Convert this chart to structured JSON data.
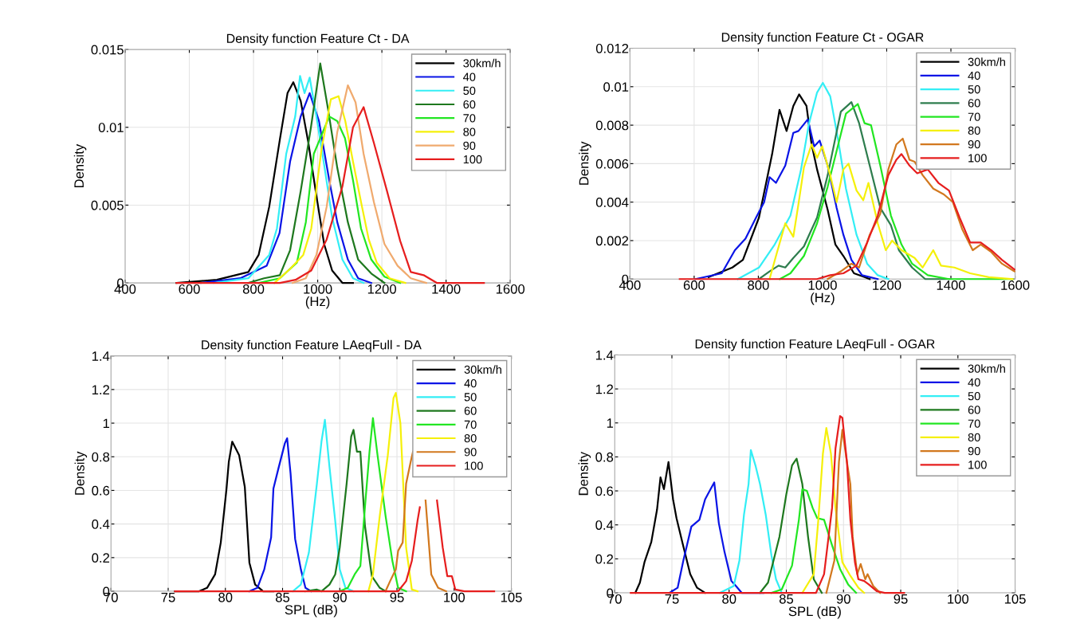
{
  "chart_data": [
    {
      "type": "line",
      "title": "Density function Feature Ct - DA",
      "xlabel": "(Hz)",
      "ylabel": "Density",
      "xlim": [
        400,
        1600
      ],
      "xticks": [
        400,
        600,
        800,
        1000,
        1200,
        1400,
        1600
      ],
      "ylim": [
        0,
        0.015
      ],
      "yticks": [
        0,
        0.005,
        0.01,
        0.015
      ],
      "grid": true,
      "legend": "top right",
      "series": [
        {
          "name": "30km/h",
          "color": "#000000",
          "x": [
            560,
            686,
            784,
            816,
            849,
            882,
            906,
            924,
            947,
            971,
            996,
            1020,
            1045,
            1077,
            1110
          ],
          "values": [
            0,
            0.0002,
            0.0007,
            0.0018,
            0.0049,
            0.0092,
            0.0122,
            0.0129,
            0.0117,
            0.009,
            0.0056,
            0.0025,
            0.0008,
            0,
            0
          ]
        },
        {
          "name": "40",
          "color": "#0a14e6",
          "x": [
            637,
            759,
            841,
            881,
            914,
            947,
            975,
            1004,
            1036,
            1061,
            1094,
            1126,
            1167
          ],
          "values": [
            0,
            0.0003,
            0.0011,
            0.0032,
            0.0078,
            0.0107,
            0.0122,
            0.0104,
            0.0066,
            0.0039,
            0.0015,
            0.0003,
            0
          ]
        },
        {
          "name": "50",
          "color": "#33eef5",
          "x": [
            677,
            784,
            849,
            873,
            902,
            930,
            945,
            959,
            975,
            996,
            1020,
            1045,
            1077,
            1110,
            1143
          ],
          "values": [
            0,
            0.0003,
            0.0018,
            0.0035,
            0.0083,
            0.0107,
            0.0133,
            0.0122,
            0.0132,
            0.0107,
            0.0076,
            0.0042,
            0.0015,
            0.0003,
            0
          ]
        },
        {
          "name": "60",
          "color": "#1e781e",
          "x": [
            784,
            833,
            882,
            914,
            947,
            979,
            1008,
            1032,
            1061,
            1094,
            1126,
            1167,
            1208
          ],
          "values": [
            0,
            0.0003,
            0.0005,
            0.0021,
            0.0059,
            0.01,
            0.0141,
            0.0112,
            0.0074,
            0.0039,
            0.0015,
            0.0006,
            0
          ]
        },
        {
          "name": "70",
          "color": "#22e622",
          "x": [
            816,
            882,
            935,
            963,
            988,
            1012,
            1036,
            1061,
            1085,
            1110,
            1135,
            1167,
            1208,
            1257
          ],
          "values": [
            0,
            0.0003,
            0.0013,
            0.0039,
            0.0083,
            0.0095,
            0.0107,
            0.0104,
            0.0093,
            0.0066,
            0.0035,
            0.0015,
            0.0004,
            0
          ]
        },
        {
          "name": "80",
          "color": "#f5f00a",
          "x": [
            865,
            914,
            955,
            980,
            1012,
            1041,
            1065,
            1086,
            1110,
            1135,
            1159,
            1184,
            1224,
            1273
          ],
          "values": [
            0,
            0.0009,
            0.0018,
            0.0035,
            0.0086,
            0.0118,
            0.012,
            0.0104,
            0.0078,
            0.0052,
            0.0028,
            0.0013,
            0.0003,
            0
          ]
        },
        {
          "name": "90",
          "color": "#f0aa6e",
          "x": [
            922,
            963,
            996,
            1028,
            1061,
            1094,
            1118,
            1143,
            1175,
            1208,
            1249,
            1290,
            1338
          ],
          "values": [
            0,
            0.0003,
            0.0018,
            0.0049,
            0.0097,
            0.0127,
            0.0116,
            0.0083,
            0.0052,
            0.0025,
            0.0011,
            0.0003,
            0
          ]
        },
        {
          "name": "100",
          "color": "#e61e1e",
          "x": [
            560,
            882,
            931,
            980,
            1028,
            1077,
            1110,
            1143,
            1175,
            1216,
            1257,
            1290,
            1330,
            1371,
            1518
          ],
          "values": [
            0,
            0,
            0.0002,
            0.0008,
            0.0028,
            0.0062,
            0.01,
            0.0113,
            0.009,
            0.0059,
            0.0027,
            0.0007,
            0.0005,
            0,
            0
          ]
        }
      ]
    },
    {
      "type": "line",
      "title": "Density function Feature Ct - OGAR",
      "xlabel": "(Hz)",
      "ylabel": "Density",
      "xlim": [
        400,
        1600
      ],
      "xticks": [
        400,
        600,
        800,
        1000,
        1200,
        1400,
        1600
      ],
      "ylim": [
        0,
        0.012
      ],
      "yticks": [
        0,
        0.002,
        0.004,
        0.006,
        0.008,
        0.01,
        0.012
      ],
      "grid": true,
      "legend": "top right",
      "series": [
        {
          "name": "30km/h",
          "color": "#000000",
          "x": [
            645,
            719,
            752,
            802,
            843,
            866,
            888,
            909,
            927,
            950,
            966,
            983,
            1016,
            1040,
            1065,
            1098,
            1131,
            1147
          ],
          "values": [
            0.0001,
            0.0006,
            0.001,
            0.0032,
            0.0065,
            0.0088,
            0.0077,
            0.009,
            0.0096,
            0.009,
            0.007,
            0.0057,
            0.0036,
            0.0018,
            0.0012,
            0.0003,
            0.0001,
            0
          ]
        },
        {
          "name": "40",
          "color": "#0a14e6",
          "x": [
            604,
            686,
            727,
            760,
            793,
            818,
            835,
            855,
            884,
            909,
            925,
            954,
            974,
            991,
            1016,
            1044,
            1065,
            1090,
            1123,
            1172
          ],
          "values": [
            0,
            0.0003,
            0.0015,
            0.0021,
            0.0032,
            0.004,
            0.0053,
            0.005,
            0.0059,
            0.0076,
            0.0077,
            0.0083,
            0.0069,
            0.0072,
            0.0059,
            0.0037,
            0.0023,
            0.001,
            0.0002,
            0
          ]
        },
        {
          "name": "50",
          "color": "#33eef5",
          "x": [
            736,
            802,
            851,
            900,
            933,
            958,
            983,
            1001,
            1024,
            1049,
            1073,
            1106,
            1139,
            1172,
            1205
          ],
          "values": [
            0,
            0.0006,
            0.0018,
            0.0033,
            0.0057,
            0.0081,
            0.0097,
            0.0102,
            0.0095,
            0.0072,
            0.0047,
            0.0023,
            0.0008,
            0.0002,
            0
          ]
        },
        {
          "name": "60",
          "color": "#2e7d4e",
          "x": [
            802,
            835,
            863,
            884,
            909,
            942,
            983,
            1016,
            1057,
            1090,
            1114,
            1147,
            1180,
            1213,
            1238,
            1279,
            1320,
            1394
          ],
          "values": [
            0,
            0.0004,
            0.0007,
            0.0006,
            0.0011,
            0.0017,
            0.0032,
            0.0054,
            0.0087,
            0.0092,
            0.0081,
            0.0059,
            0.0037,
            0.0028,
            0.0015,
            0.0006,
            0,
            0
          ]
        },
        {
          "name": "70",
          "color": "#22e622",
          "x": [
            867,
            900,
            942,
            983,
            1016,
            1049,
            1073,
            1110,
            1131,
            1151,
            1180,
            1213,
            1246,
            1279,
            1328,
            1394,
            1592
          ],
          "values": [
            0,
            0.0003,
            0.0012,
            0.0029,
            0.0048,
            0.007,
            0.0086,
            0.0091,
            0.0081,
            0.008,
            0.0059,
            0.0033,
            0.0018,
            0.0008,
            0.0002,
            0,
            0
          ]
        },
        {
          "name": "80",
          "color": "#f5f00a",
          "x": [
            835,
            855,
            884,
            909,
            925,
            942,
            966,
            983,
            999,
            1024,
            1044,
            1065,
            1081,
            1106,
            1127,
            1143,
            1172,
            1197,
            1217,
            1246,
            1287,
            1312,
            1345,
            1369,
            1411,
            1460,
            1518,
            1592
          ],
          "values": [
            0,
            0.0012,
            0.0029,
            0.0022,
            0.0039,
            0.0058,
            0.007,
            0.0063,
            0.0069,
            0.0054,
            0.004,
            0.0057,
            0.006,
            0.0046,
            0.0041,
            0.005,
            0.0029,
            0.0015,
            0.002,
            0.0015,
            0.0011,
            0.0006,
            0.0015,
            0.0007,
            0.0006,
            0.0003,
            0.0001,
            0
          ]
        },
        {
          "name": "90",
          "color": "#d2781e",
          "x": [
            1016,
            1057,
            1090,
            1114,
            1147,
            1180,
            1205,
            1230,
            1250,
            1271,
            1287,
            1312,
            1345,
            1378,
            1406,
            1435,
            1468,
            1493,
            1526,
            1559,
            1598
          ],
          "values": [
            0,
            0.0004,
            0.0008,
            0.0006,
            0.0023,
            0.0034,
            0.0057,
            0.007,
            0.0073,
            0.0062,
            0.0061,
            0.0054,
            0.0047,
            0.0044,
            0.004,
            0.0026,
            0.0015,
            0.0018,
            0.0014,
            0.0008,
            0.0004
          ]
        },
        {
          "name": "100",
          "color": "#e61e1e",
          "x": [
            555,
            983,
            1024,
            1065,
            1106,
            1139,
            1172,
            1205,
            1230,
            1246,
            1271,
            1295,
            1328,
            1361,
            1394,
            1427,
            1460,
            1493,
            1526,
            1559,
            1598
          ],
          "values": [
            0,
            0,
            0.0002,
            0.0003,
            0.0007,
            0.0019,
            0.0033,
            0.0054,
            0.0062,
            0.0065,
            0.0059,
            0.0055,
            0.0057,
            0.005,
            0.0046,
            0.0032,
            0.0019,
            0.0019,
            0.0015,
            0.001,
            0.0005
          ]
        }
      ]
    },
    {
      "type": "line",
      "title": "Density function Feature LAeqFull - DA",
      "xlabel": "SPL (dB)",
      "ylabel": "Density",
      "xlim": [
        70,
        105
      ],
      "xticks": [
        70,
        75,
        80,
        85,
        90,
        95,
        100,
        105
      ],
      "ylim": [
        0,
        1.4
      ],
      "yticks": [
        0,
        0.2,
        0.4,
        0.6,
        0.8,
        1,
        1.2,
        1.4
      ],
      "grid": true,
      "legend": "top right",
      "series": [
        {
          "name": "30km/h",
          "color": "#000000",
          "x": [
            75.6,
            77.7,
            78.4,
            79.1,
            79.6,
            80.1,
            80.3,
            80.6,
            80.9,
            81.2,
            81.7,
            82.1,
            82.6,
            83.3,
            84.2
          ],
          "values": [
            0,
            0,
            0.02,
            0.1,
            0.29,
            0.61,
            0.77,
            0.89,
            0.85,
            0.81,
            0.62,
            0.17,
            0.04,
            0,
            0
          ]
        },
        {
          "name": "40",
          "color": "#0a14e6",
          "x": [
            82.1,
            82.8,
            83.4,
            84.0,
            84.2,
            84.6,
            85.2,
            85.4,
            85.7,
            86.1,
            86.6,
            87.0,
            87.5
          ],
          "values": [
            0,
            0.02,
            0.13,
            0.32,
            0.61,
            0.72,
            0.88,
            0.91,
            0.7,
            0.31,
            0.13,
            0.02,
            0
          ]
        },
        {
          "name": "50",
          "color": "#33eef5",
          "x": [
            85.9,
            86.6,
            87.3,
            88.0,
            88.4,
            88.7,
            89.1,
            89.6,
            90.0,
            90.5,
            91.2
          ],
          "values": [
            0,
            0.04,
            0.23,
            0.64,
            0.89,
            1.02,
            0.74,
            0.42,
            0.13,
            0.02,
            0
          ]
        },
        {
          "name": "60",
          "color": "#1e781e",
          "x": [
            87.0,
            88.0,
            88.4,
            89.1,
            89.6,
            90.0,
            90.6,
            91.0,
            91.2,
            91.5,
            91.8,
            92.2,
            92.8,
            93.5,
            94.0
          ],
          "values": [
            0,
            0.01,
            0,
            0.04,
            0.1,
            0.26,
            0.64,
            0.92,
            0.96,
            0.83,
            0.83,
            0.39,
            0.09,
            0.02,
            0
          ]
        },
        {
          "name": "70",
          "color": "#22e622",
          "x": [
            90.0,
            90.7,
            91.3,
            91.8,
            92.2,
            92.6,
            92.9,
            93.3,
            94.0,
            94.6,
            95.1,
            95.8
          ],
          "values": [
            0,
            0.02,
            0.1,
            0.15,
            0.5,
            0.83,
            1.03,
            0.81,
            0.45,
            0.18,
            0.02,
            0
          ]
        },
        {
          "name": "80",
          "color": "#f5f00a",
          "x": [
            92.5,
            92.9,
            93.5,
            94.2,
            94.7,
            94.9,
            95.3,
            95.8,
            96.3,
            96.8
          ],
          "values": [
            0,
            0.1,
            0.45,
            0.81,
            1.15,
            1.18,
            1.0,
            0.26,
            0.01,
            0
          ]
        },
        {
          "name": "90",
          "color": "#d2781e",
          "x": [
            94.0,
            94.4,
            94.9,
            95.1,
            95.5,
            95.8,
            96.2,
            96.4,
            97.0,
            97.5,
            98.0,
            98.6,
            99.3
          ],
          "values": [
            0,
            0.06,
            0.13,
            0.24,
            0.29,
            0.64,
            0.77,
            0.83,
            null,
            0.54,
            0.1,
            0.02,
            0
          ]
        },
        {
          "name": "100",
          "color": "#e61e1e",
          "x": [
            75.6,
            95.1,
            95.8,
            96.3,
            96.8,
            97.0,
            97.8,
            98.5,
            99.0,
            99.4,
            99.8,
            100.1,
            100.9,
            103.5
          ],
          "values": [
            0,
            0,
            0.06,
            0.18,
            0.42,
            0.5,
            null,
            0.54,
            0.26,
            0.09,
            0.09,
            0.01,
            0,
            0
          ]
        }
      ]
    },
    {
      "type": "line",
      "title": "Density function Feature LAeqFull - OGAR",
      "xlabel": "SPL (dB)",
      "ylabel": "Density",
      "xlim": [
        70,
        105
      ],
      "xticks": [
        70,
        75,
        80,
        85,
        90,
        95,
        100,
        105
      ],
      "ylim": [
        0,
        1.4
      ],
      "yticks": [
        0,
        0.2,
        0.4,
        0.6,
        0.8,
        1,
        1.2,
        1.4
      ],
      "grid": true,
      "legend": "top right",
      "series": [
        {
          "name": "30km/h",
          "color": "#000000",
          "x": [
            71.8,
            72.2,
            72.6,
            73.2,
            73.7,
            74.0,
            74.3,
            74.7,
            75.1,
            75.4,
            75.9,
            76.6,
            77.2,
            77.9
          ],
          "values": [
            0,
            0.06,
            0.18,
            0.3,
            0.49,
            0.68,
            0.61,
            0.77,
            0.55,
            0.44,
            0.3,
            0.11,
            0.03,
            0
          ]
        },
        {
          "name": "40",
          "color": "#0a14e6",
          "x": [
            74.8,
            75.5,
            76.0,
            76.7,
            77.4,
            77.9,
            78.3,
            78.7,
            79.1,
            79.6,
            80.2,
            80.6,
            81.1,
            82.3,
            83.0
          ],
          "values": [
            0,
            0.03,
            0.19,
            0.39,
            0.43,
            0.55,
            0.6,
            0.65,
            0.41,
            0.24,
            0.07,
            0.04,
            0,
            0,
            0
          ]
        },
        {
          "name": "50",
          "color": "#33eef5",
          "x": [
            79.2,
            80.4,
            80.9,
            81.3,
            81.7,
            81.9,
            82.3,
            82.7,
            83.2,
            83.7,
            84.1,
            84.6
          ],
          "values": [
            0,
            0.04,
            0.19,
            0.46,
            0.64,
            0.84,
            0.75,
            0.64,
            0.46,
            0.22,
            0.08,
            0
          ]
        },
        {
          "name": "60",
          "color": "#1e781e",
          "x": [
            82.7,
            83.4,
            84.4,
            85.0,
            85.5,
            85.9,
            86.4,
            86.9,
            87.4,
            88.1
          ],
          "values": [
            0,
            0.06,
            0.33,
            0.58,
            0.75,
            0.79,
            0.64,
            0.33,
            0.08,
            0
          ]
        },
        {
          "name": "70",
          "color": "#22e622",
          "x": [
            83.7,
            84.6,
            85.5,
            86.1,
            86.4,
            86.8,
            87.3,
            87.7,
            88.3,
            89.0,
            89.7,
            90.4,
            91.1
          ],
          "values": [
            0,
            0.02,
            0.16,
            0.43,
            0.61,
            0.6,
            0.5,
            0.44,
            0.43,
            0.28,
            0.14,
            0.05,
            0
          ]
        },
        {
          "name": "80",
          "color": "#f5f00a",
          "x": [
            86.4,
            87.4,
            87.8,
            88.2,
            88.5,
            88.9,
            89.3,
            89.9,
            90.6,
            91.3,
            91.8
          ],
          "values": [
            0,
            0.11,
            0.43,
            0.82,
            0.97,
            0.82,
            0.5,
            0.18,
            0.1,
            0.03,
            0
          ]
        },
        {
          "name": "90",
          "color": "#d2781e",
          "x": [
            88.5,
            89.2,
            89.6,
            89.9,
            90.3,
            90.6,
            90.8,
            91.2,
            91.5,
            91.9,
            92.1,
            92.6,
            93.2
          ],
          "values": [
            0,
            0.19,
            0.77,
            0.96,
            0.77,
            0.64,
            0.33,
            0.11,
            0.17,
            0.08,
            0.11,
            0.04,
            0
          ]
        },
        {
          "name": "100",
          "color": "#e61e1e",
          "x": [
            71.4,
            87.6,
            88.3,
            89.0,
            89.3,
            89.7,
            89.9,
            90.3,
            90.6,
            91.0,
            91.3,
            91.8,
            92.2,
            92.9,
            93.6,
            95.3
          ],
          "values": [
            0,
            0,
            0.11,
            0.5,
            0.85,
            1.04,
            1.03,
            0.77,
            0.43,
            0.18,
            0.08,
            0.07,
            0.05,
            0.01,
            0,
            0
          ]
        }
      ]
    }
  ]
}
